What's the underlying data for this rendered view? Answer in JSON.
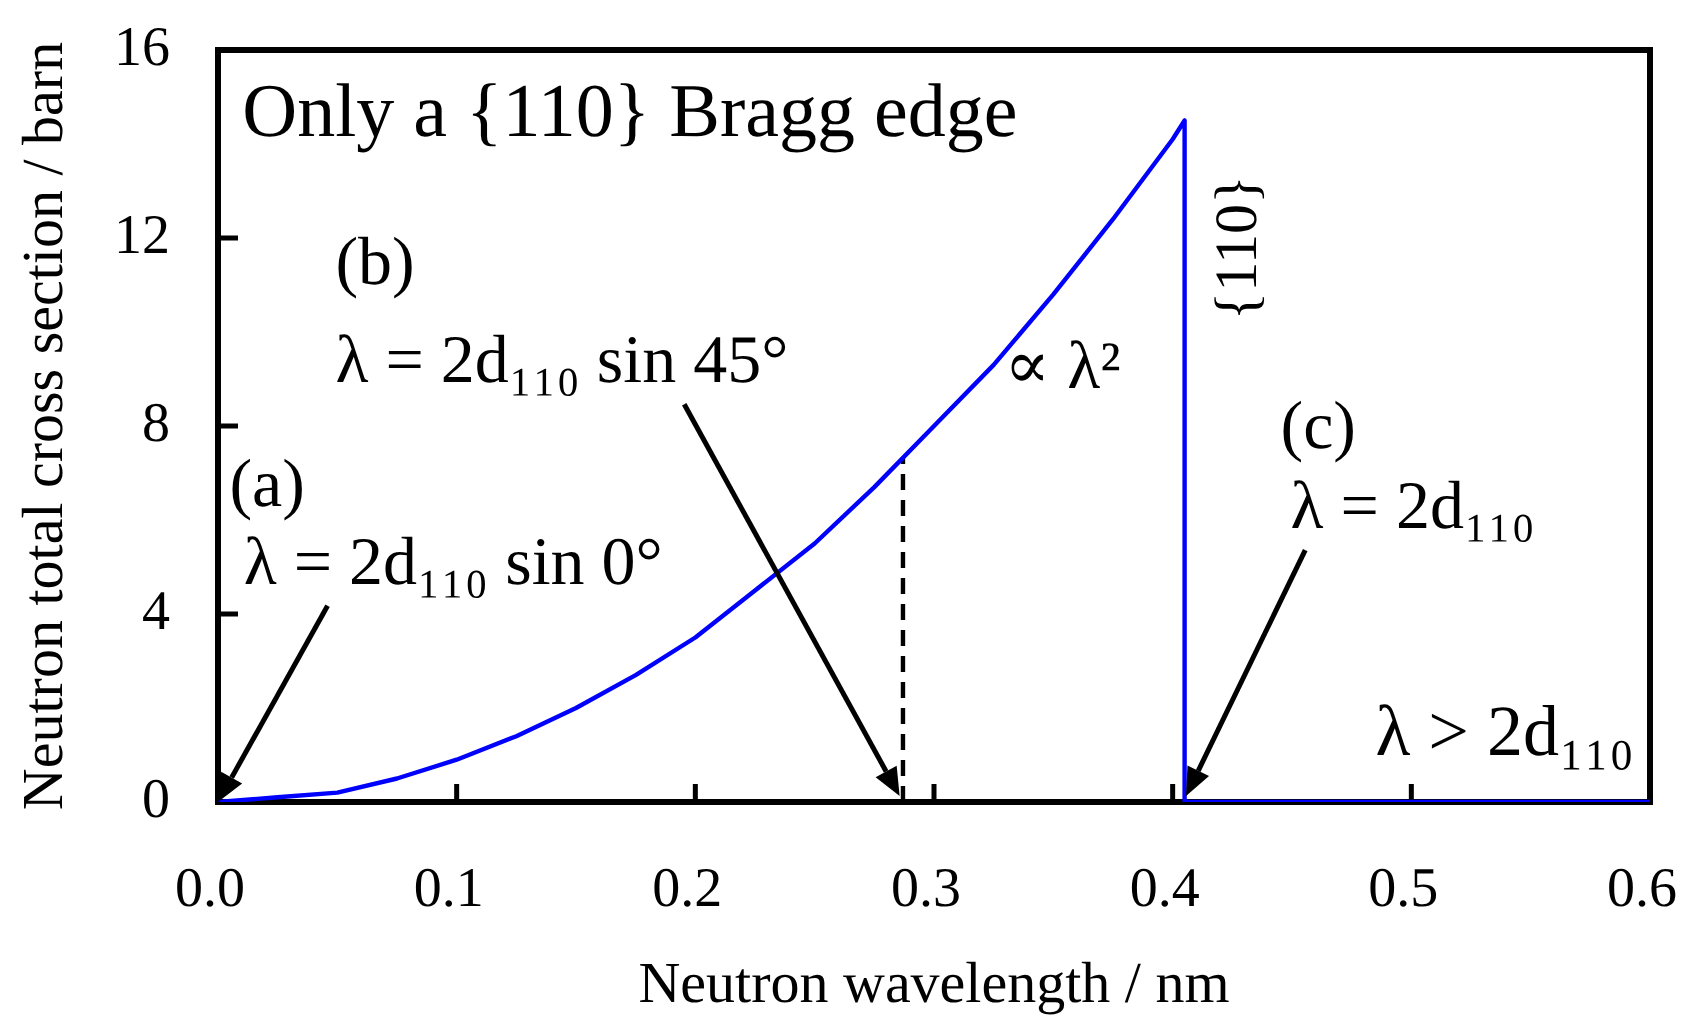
{
  "chart_data": {
    "type": "line",
    "xlabel": "Neutron wavelength / nm",
    "ylabel": "Neutron total cross section / barn",
    "xlim": [
      0,
      0.6
    ],
    "ylim": [
      0,
      16
    ],
    "xticks": [
      {
        "value": 0,
        "label": "0.0"
      },
      0.1,
      0.2,
      0.3,
      0.4,
      0.5,
      0.6
    ],
    "yticks": [
      0,
      4,
      8,
      12,
      16
    ],
    "series": [
      {
        "color": "#0000ff",
        "x": [
          0,
          0.025,
          0.05,
          0.075,
          0.1,
          0.125,
          0.15,
          0.175,
          0.2,
          0.225,
          0.25,
          0.275,
          0.3,
          0.325,
          0.35,
          0.375,
          0.4,
          0.405,
          0.405,
          0.6
        ],
        "values": [
          0,
          0.1,
          0.2,
          0.5,
          0.9,
          1.4,
          2.0,
          2.7,
          3.5,
          4.5,
          5.5,
          6.7,
          8.0,
          9.3,
          10.8,
          12.4,
          14.1,
          14.5,
          0,
          0
        ]
      },
      {
        "color": "#000000",
        "line_style": "dashed",
        "x": [
          0.287,
          0.287
        ],
        "values": [
          0,
          7.3
        ]
      }
    ],
    "annotations": [
      "Only a {110} Bragg edge",
      "(a)",
      {
        "text": "λ = 2d₁₁₀ sin 0°",
        "x": 0,
        "y": 0
      },
      "(b)",
      "λ = 2d₁₁₀ sin 45°",
      "∝ λ²",
      "{110}",
      "(c)",
      "λ = 2d₁₁₀",
      "λ > 2d₁₁₀"
    ]
  }
}
